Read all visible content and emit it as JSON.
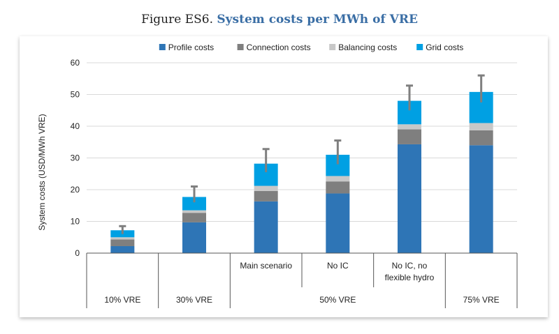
{
  "figure": {
    "label": "Figure ES6.",
    "caption": "System costs per MWh of VRE"
  },
  "chart_data": {
    "type": "bar",
    "stacked": true,
    "title": "System costs per MWh of VRE",
    "ylabel": "System costs (USD/MWh VRE)",
    "xlabel": "",
    "ylim": [
      0,
      60
    ],
    "yticks": [
      0,
      10,
      20,
      30,
      40,
      50,
      60
    ],
    "grid": true,
    "legend_position": "top",
    "categories": [
      "",
      "",
      "Main scenario",
      "No IC",
      "No IC, no flexible hydro",
      ""
    ],
    "category_lines": [
      [],
      [],
      [
        "Main scenario"
      ],
      [
        "No IC"
      ],
      [
        "No IC, no",
        "flexible hydro"
      ],
      []
    ],
    "groups": [
      {
        "label": "10% VRE",
        "span": [
          0,
          0
        ]
      },
      {
        "label": "30% VRE",
        "span": [
          1,
          1
        ]
      },
      {
        "label": "50% VRE",
        "span": [
          2,
          4
        ]
      },
      {
        "label": "75% VRE",
        "span": [
          5,
          5
        ]
      }
    ],
    "series": [
      {
        "name": "Profile costs",
        "color": "#2e75b6",
        "values": [
          2.2,
          9.7,
          16.3,
          18.8,
          34.3,
          34.0
        ]
      },
      {
        "name": "Connection costs",
        "color": "#7f7f7f",
        "values": [
          2.1,
          3.0,
          3.3,
          3.8,
          4.7,
          4.7
        ]
      },
      {
        "name": "Balancing costs",
        "color": "#c8c8c8",
        "values": [
          0.7,
          0.8,
          1.6,
          1.7,
          1.6,
          2.3
        ]
      },
      {
        "name": "Grid costs",
        "color": "#00a0e3",
        "values": [
          2.2,
          4.2,
          7.0,
          6.7,
          7.4,
          9.8
        ]
      }
    ],
    "error_bars": [
      {
        "low": 6.0,
        "high": 8.5
      },
      {
        "low": 16.0,
        "high": 21.0
      },
      {
        "low": 25.5,
        "high": 32.8
      },
      {
        "low": 28.0,
        "high": 35.5
      },
      {
        "low": 45.0,
        "high": 52.8
      },
      {
        "low": 47.5,
        "high": 56.0
      }
    ],
    "error_bar_color": "#7f7f7f"
  }
}
